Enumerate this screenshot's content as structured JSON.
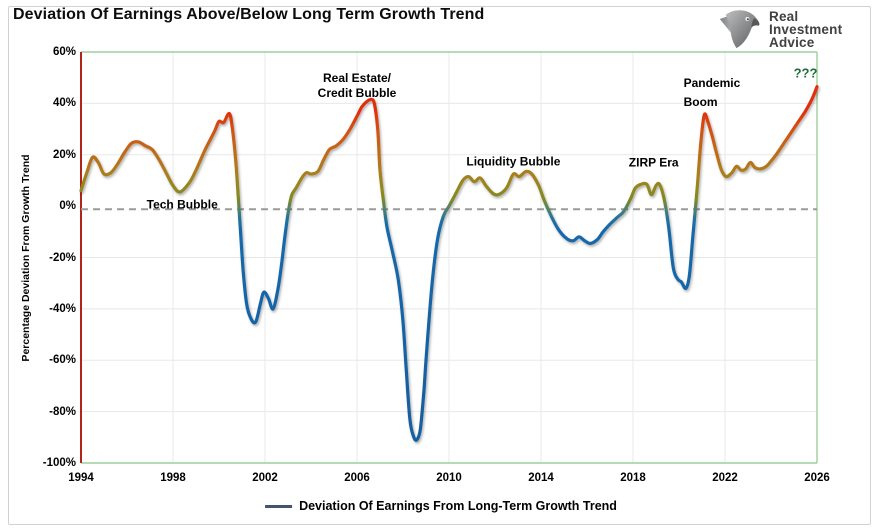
{
  "title": "Deviation Of Earnings Above/Below Long Term Growth Trend",
  "logo": {
    "line1": "Real",
    "line2": "Investment",
    "line3": "Advice",
    "icon": "eagle-head",
    "text_color": "#414042"
  },
  "chart_data": {
    "type": "line",
    "title": "Deviation Of Earnings Above/Below Long Term Growth Trend",
    "xlabel": "",
    "ylabel": "Percentage Deviation From Growth Trend",
    "xlim": [
      1994,
      2026
    ],
    "ylim": [
      -100,
      60
    ],
    "x_ticks": [
      1994,
      1998,
      2002,
      2006,
      2010,
      2014,
      2018,
      2022,
      2026
    ],
    "y_ticks": [
      {
        "label": "60%",
        "value": 60
      },
      {
        "label": "40%",
        "value": 40
      },
      {
        "label": "20%",
        "value": 20
      },
      {
        "label": "0%",
        "value": 0
      },
      {
        "label": "-20%",
        "value": -20
      },
      {
        "label": "-40%",
        "value": -40
      },
      {
        "label": "-60%",
        "value": -60
      },
      {
        "label": "-80%",
        "value": -80
      },
      {
        "label": "-100%",
        "value": -100
      }
    ],
    "grid_y": [
      40,
      20,
      -20,
      -40,
      -60,
      -80
    ],
    "grid_color": "#e8e8e8",
    "plot_border_color": "#9ccf9c",
    "left_axis_color": "#b22318",
    "zero_line": {
      "value": -1.2,
      "color": "#9b9b9b",
      "dash": "7 5"
    },
    "legend": {
      "label": "Deviation Of Earnings From Long-Term Growth Trend",
      "swatch_color": "#44546A",
      "position": "bottom-center"
    },
    "annotations": [
      {
        "id": "tech-bubble",
        "lines": [
          "Tech Bubble"
        ],
        "year": 1998.4,
        "value": 0.5,
        "align": "center",
        "color": "#000000",
        "lh": 15,
        "size": 12
      },
      {
        "id": "real-estate-credit-bubble",
        "lines": [
          "Real Estate/",
          "Credit Bubble"
        ],
        "year": 2006.0,
        "value": 46.8,
        "align": "center",
        "color": "#000000",
        "lh": 15,
        "size": 12
      },
      {
        "id": "liquidity-bubble",
        "lines": [
          "Liquidity Bubble"
        ],
        "year": 2012.8,
        "value": 17.2,
        "align": "center",
        "color": "#000000",
        "lh": 15,
        "size": 12
      },
      {
        "id": "zirp-era",
        "lines": [
          "ZIRP Era"
        ],
        "year": 2018.9,
        "value": 16.8,
        "align": "center",
        "color": "#000000",
        "lh": 15,
        "size": 12
      },
      {
        "id": "pandemic-boom",
        "lines": [
          "Pandemic",
          "Boom"
        ],
        "year": 2020.2,
        "value": 44.0,
        "align": "left",
        "color": "#000000",
        "lh": 19,
        "size": 12
      },
      {
        "id": "question-marks",
        "lines": [
          "???"
        ],
        "year": 2025.5,
        "value": 51.8,
        "align": "center",
        "color": "#1F6B3A",
        "lh": 15,
        "size": 13
      }
    ],
    "color_scale": [
      {
        "value": 60,
        "color": "#E8300C"
      },
      {
        "value": 37,
        "color": "#E02F0E"
      },
      {
        "value": 29,
        "color": "#D15413"
      },
      {
        "value": 21,
        "color": "#C16A18"
      },
      {
        "value": 13,
        "color": "#AA7E1C"
      },
      {
        "value": 7,
        "color": "#93881F"
      },
      {
        "value": 2.5,
        "color": "#7E8926"
      },
      {
        "value": -1.5,
        "color": "#4B8270"
      },
      {
        "value": -5,
        "color": "#22719F"
      },
      {
        "value": -10,
        "color": "#1668AA"
      },
      {
        "value": -100,
        "color": "#145D9E"
      }
    ],
    "series": [
      {
        "name": "Deviation Of Earnings From Long-Term Growth Trend",
        "points": [
          [
            1994.0,
            6
          ],
          [
            1994.25,
            13
          ],
          [
            1994.5,
            19
          ],
          [
            1994.75,
            17
          ],
          [
            1995.0,
            12.5
          ],
          [
            1995.3,
            13
          ],
          [
            1995.6,
            16.5
          ],
          [
            1995.9,
            21
          ],
          [
            1996.2,
            24.5
          ],
          [
            1996.5,
            25
          ],
          [
            1996.8,
            23.5
          ],
          [
            1997.1,
            22
          ],
          [
            1997.4,
            18
          ],
          [
            1997.7,
            13
          ],
          [
            1998.0,
            8
          ],
          [
            1998.3,
            5.5
          ],
          [
            1998.7,
            9
          ],
          [
            1999.0,
            14
          ],
          [
            1999.4,
            22
          ],
          [
            1999.8,
            29
          ],
          [
            2000.0,
            33
          ],
          [
            2000.2,
            32.5
          ],
          [
            2000.45,
            36
          ],
          [
            2000.6,
            29
          ],
          [
            2000.75,
            15
          ],
          [
            2000.9,
            -5
          ],
          [
            2001.05,
            -25
          ],
          [
            2001.2,
            -38
          ],
          [
            2001.4,
            -44
          ],
          [
            2001.6,
            -45
          ],
          [
            2001.8,
            -38
          ],
          [
            2001.95,
            -33.5
          ],
          [
            2002.15,
            -36
          ],
          [
            2002.35,
            -40
          ],
          [
            2002.55,
            -33
          ],
          [
            2002.7,
            -24
          ],
          [
            2002.85,
            -13
          ],
          [
            2003.0,
            -3
          ],
          [
            2003.15,
            4
          ],
          [
            2003.35,
            7
          ],
          [
            2003.6,
            11
          ],
          [
            2003.8,
            13
          ],
          [
            2004.0,
            12.5
          ],
          [
            2004.3,
            13.5
          ],
          [
            2004.55,
            18
          ],
          [
            2004.8,
            22
          ],
          [
            2005.1,
            23.5
          ],
          [
            2005.4,
            26
          ],
          [
            2005.7,
            30
          ],
          [
            2006.0,
            35
          ],
          [
            2006.2,
            38.5
          ],
          [
            2006.4,
            40.5
          ],
          [
            2006.6,
            41.5
          ],
          [
            2006.75,
            40
          ],
          [
            2006.9,
            30
          ],
          [
            2007.0,
            14
          ],
          [
            2007.15,
            2
          ],
          [
            2007.3,
            -8
          ],
          [
            2007.55,
            -18
          ],
          [
            2007.8,
            -29
          ],
          [
            2008.0,
            -45
          ],
          [
            2008.15,
            -65
          ],
          [
            2008.3,
            -83
          ],
          [
            2008.45,
            -89.5
          ],
          [
            2008.6,
            -91
          ],
          [
            2008.75,
            -87
          ],
          [
            2008.9,
            -73
          ],
          [
            2009.0,
            -60
          ],
          [
            2009.15,
            -42
          ],
          [
            2009.3,
            -27
          ],
          [
            2009.5,
            -13
          ],
          [
            2009.75,
            -4
          ],
          [
            2010.0,
            0
          ],
          [
            2010.3,
            5
          ],
          [
            2010.6,
            10
          ],
          [
            2010.85,
            11.5
          ],
          [
            2011.1,
            9.5
          ],
          [
            2011.35,
            11
          ],
          [
            2011.6,
            8
          ],
          [
            2011.9,
            5
          ],
          [
            2012.15,
            4.5
          ],
          [
            2012.5,
            7
          ],
          [
            2012.8,
            12.5
          ],
          [
            2013.05,
            11.5
          ],
          [
            2013.35,
            13.5
          ],
          [
            2013.6,
            12.5
          ],
          [
            2013.9,
            8
          ],
          [
            2014.15,
            2
          ],
          [
            2014.45,
            -4
          ],
          [
            2014.75,
            -9
          ],
          [
            2015.1,
            -12.5
          ],
          [
            2015.4,
            -13.5
          ],
          [
            2015.65,
            -12
          ],
          [
            2015.9,
            -13.5
          ],
          [
            2016.15,
            -14.5
          ],
          [
            2016.45,
            -13
          ],
          [
            2016.7,
            -10
          ],
          [
            2017.0,
            -7
          ],
          [
            2017.3,
            -4.5
          ],
          [
            2017.6,
            -2
          ],
          [
            2017.9,
            3
          ],
          [
            2018.1,
            7
          ],
          [
            2018.35,
            8.5
          ],
          [
            2018.6,
            8.5
          ],
          [
            2018.8,
            4.5
          ],
          [
            2019.0,
            8
          ],
          [
            2019.15,
            8.5
          ],
          [
            2019.35,
            3
          ],
          [
            2019.55,
            -8
          ],
          [
            2019.75,
            -24
          ],
          [
            2019.95,
            -28.5
          ],
          [
            2020.1,
            -29.5
          ],
          [
            2020.3,
            -32
          ],
          [
            2020.45,
            -27
          ],
          [
            2020.6,
            -12
          ],
          [
            2020.8,
            8
          ],
          [
            2020.95,
            25
          ],
          [
            2021.1,
            35.5
          ],
          [
            2021.25,
            33
          ],
          [
            2021.45,
            27
          ],
          [
            2021.65,
            20
          ],
          [
            2021.85,
            14
          ],
          [
            2022.05,
            11.5
          ],
          [
            2022.3,
            13
          ],
          [
            2022.5,
            15.5
          ],
          [
            2022.7,
            14
          ],
          [
            2022.9,
            14.5
          ],
          [
            2023.1,
            17
          ],
          [
            2023.3,
            15
          ],
          [
            2023.55,
            14.5
          ],
          [
            2023.8,
            15.5
          ],
          [
            2024.05,
            18
          ],
          [
            2024.3,
            21
          ],
          [
            2024.6,
            25
          ],
          [
            2024.9,
            29
          ],
          [
            2025.2,
            33
          ],
          [
            2025.5,
            37
          ],
          [
            2025.8,
            42
          ],
          [
            2026.0,
            46.5
          ]
        ]
      }
    ]
  }
}
